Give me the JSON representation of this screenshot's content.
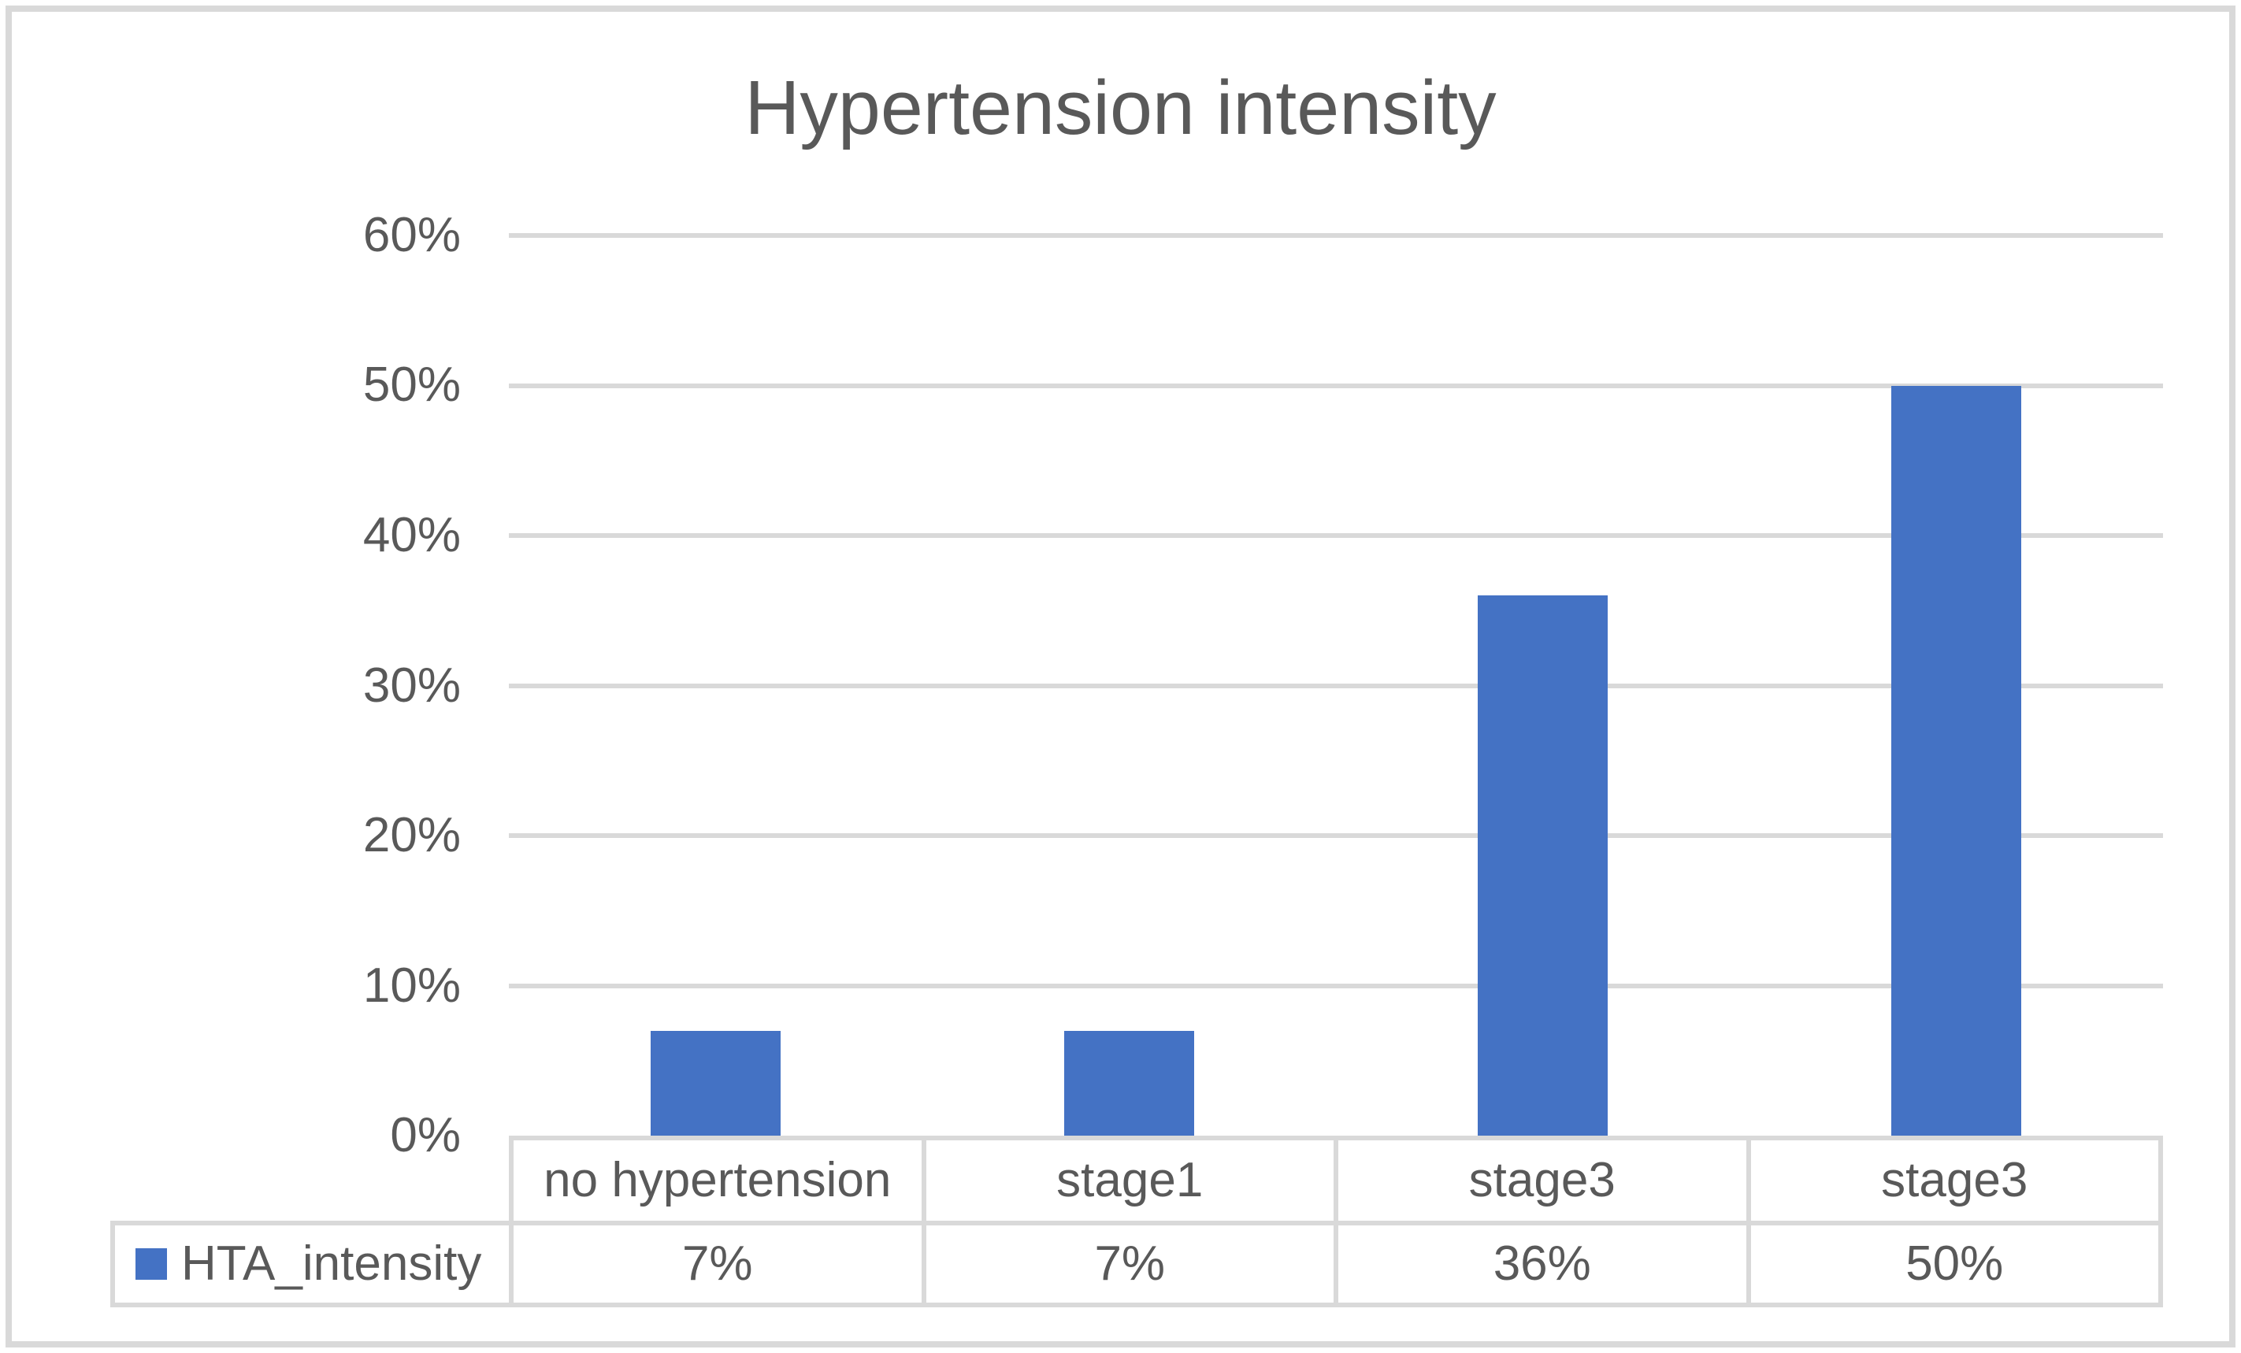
{
  "title": "Hypertension intensity",
  "colors": {
    "bar": "#4472c4",
    "gridline": "#d9d9d9",
    "table_border": "#d9d9d9",
    "text": "#595959",
    "frame_border": "#d9d9d9",
    "background": "#ffffff"
  },
  "legend": {
    "label": "HTA_intensity",
    "swatch_color": "#4472c4"
  },
  "chart_data": {
    "type": "bar",
    "title": "Hypertension intensity",
    "categories": [
      "no hypertension",
      "stage1",
      "stage3",
      "stage3"
    ],
    "series": [
      {
        "name": "HTA_intensity",
        "values": [
          7,
          7,
          36,
          50
        ]
      }
    ],
    "value_labels": [
      "7%",
      "7%",
      "36%",
      "50%"
    ],
    "xlabel": "",
    "ylabel": "",
    "ylim": [
      0,
      60
    ],
    "ytick_step": 10,
    "yticks": [
      "60%",
      "50%",
      "40%",
      "30%",
      "20%",
      "10%",
      "0%"
    ],
    "grid": true,
    "legend_position": "bottom-left-of-data-table",
    "data_table_shown": true
  }
}
